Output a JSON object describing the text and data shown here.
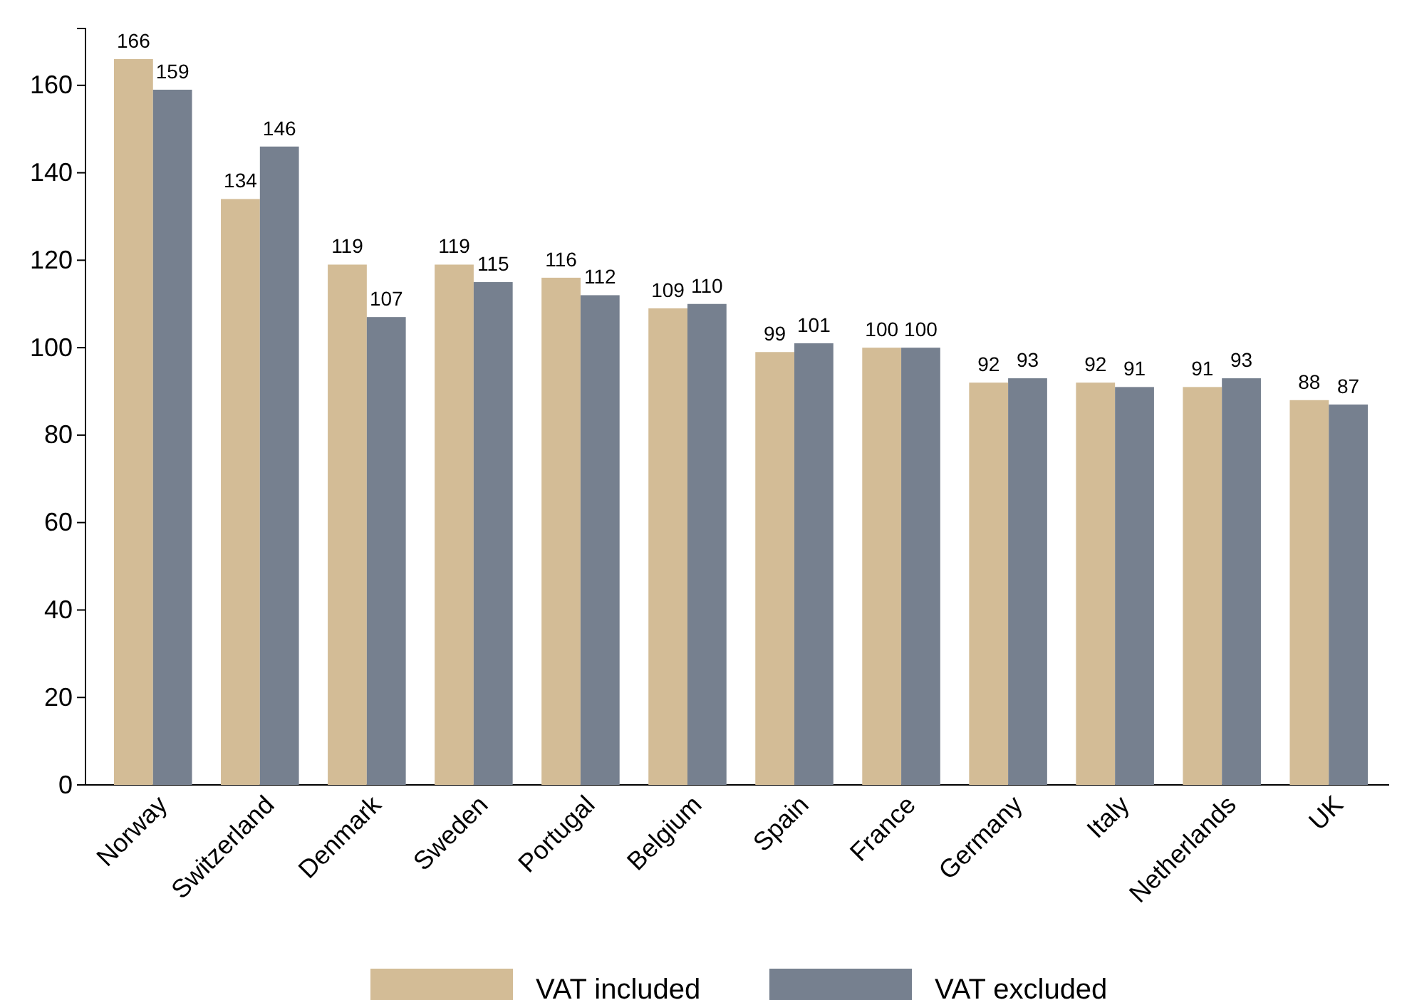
{
  "chart_data": {
    "type": "bar",
    "categories": [
      "Norway",
      "Switzerland",
      "Denmark",
      "Sweden",
      "Portugal",
      "Belgium",
      "Spain",
      "France",
      "Germany",
      "Italy",
      "Netherlands",
      "UK"
    ],
    "series": [
      {
        "name": "VAT included",
        "color": "#d3bc96",
        "values": [
          166,
          134,
          119,
          119,
          116,
          109,
          99,
          100,
          92,
          92,
          91,
          88
        ]
      },
      {
        "name": "VAT excluded",
        "color": "#76808f",
        "values": [
          159,
          146,
          107,
          115,
          112,
          110,
          101,
          100,
          93,
          91,
          93,
          87
        ]
      }
    ],
    "ylim": [
      0,
      173
    ],
    "yticks": [
      0,
      20,
      40,
      60,
      80,
      100,
      120,
      140,
      160
    ],
    "data_labels": true,
    "legend": "bottom",
    "grid": false
  }
}
